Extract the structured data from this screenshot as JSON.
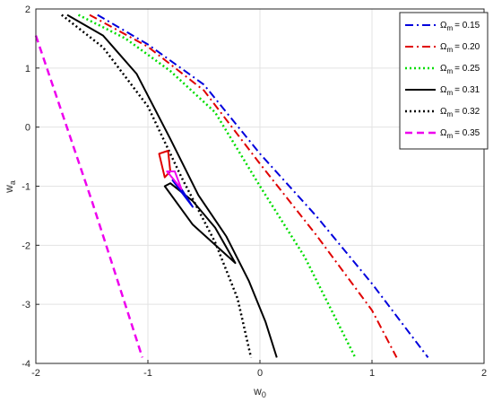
{
  "chart_data": {
    "type": "line",
    "xlabel": "w",
    "xlabel_sub": "0",
    "ylabel": "w",
    "ylabel_sub": "a",
    "xlim": [
      -2,
      2
    ],
    "ylim": [
      -4,
      2
    ],
    "xticks": [
      -2,
      -1,
      0,
      1,
      2
    ],
    "yticks": [
      -4,
      -3,
      -2,
      -1,
      0,
      1,
      2
    ],
    "grid": true,
    "legend_position": "top-right",
    "legend_symbol": "Ω",
    "legend_symbol_sub": "m",
    "series": [
      {
        "name": "= 0.15",
        "color": "#0000dd",
        "dash": "dashdot",
        "width": 2,
        "points": [
          [
            -1.45,
            1.9
          ],
          [
            -1.0,
            1.4
          ],
          [
            -0.5,
            0.72
          ],
          [
            0.0,
            -0.45
          ],
          [
            0.5,
            -1.5
          ],
          [
            1.0,
            -2.65
          ],
          [
            1.5,
            -3.9
          ]
        ]
      },
      {
        "name": "= 0.20",
        "color": "#e00000",
        "dash": "dashdot",
        "width": 2,
        "points": [
          [
            -1.52,
            1.9
          ],
          [
            -1.0,
            1.36
          ],
          [
            -0.5,
            0.62
          ],
          [
            0.0,
            -0.62
          ],
          [
            0.5,
            -1.82
          ],
          [
            1.0,
            -3.1
          ],
          [
            1.22,
            -3.9
          ]
        ]
      },
      {
        "name": "= 0.25",
        "color": "#00dd00",
        "dash": "dotted",
        "width": 2.5,
        "points": [
          [
            -1.62,
            1.9
          ],
          [
            -1.2,
            1.5
          ],
          [
            -0.8,
            0.95
          ],
          [
            -0.4,
            0.25
          ],
          [
            0.0,
            -1.0
          ],
          [
            0.4,
            -2.2
          ],
          [
            0.85,
            -3.9
          ]
        ]
      },
      {
        "name": "= 0.31",
        "color": "#000000",
        "dash": "solid",
        "width": 2,
        "points": [
          [
            -1.72,
            1.9
          ],
          [
            -1.4,
            1.55
          ],
          [
            -1.1,
            0.9
          ],
          [
            -0.8,
            -0.2
          ],
          [
            -0.55,
            -1.15
          ],
          [
            -0.3,
            -1.85
          ],
          [
            -0.1,
            -2.6
          ],
          [
            0.05,
            -3.3
          ],
          [
            0.15,
            -3.9
          ]
        ]
      },
      {
        "name": "= 0.32",
        "color": "#000000",
        "dash": "dotted",
        "width": 2.5,
        "points": [
          [
            -1.77,
            1.9
          ],
          [
            -1.4,
            1.35
          ],
          [
            -1.0,
            0.35
          ],
          [
            -0.7,
            -0.85
          ],
          [
            -0.4,
            -1.95
          ],
          [
            -0.2,
            -2.9
          ],
          [
            -0.08,
            -3.9
          ]
        ]
      },
      {
        "name": "= 0.35",
        "color": "#ee00ee",
        "dash": "dashed",
        "width": 2.5,
        "points": [
          [
            -2.0,
            1.55
          ],
          [
            -1.5,
            -1.25
          ],
          [
            -1.05,
            -3.9
          ]
        ]
      }
    ],
    "contours": [
      {
        "series_index": 3,
        "color": "#000000",
        "width": 2,
        "points": [
          [
            -0.8,
            -0.95
          ],
          [
            -0.6,
            -1.25
          ],
          [
            -0.4,
            -1.7
          ],
          [
            -0.22,
            -2.3
          ],
          [
            -0.6,
            -1.65
          ],
          [
            -0.85,
            -1.0
          ]
        ]
      },
      {
        "series_index": 1,
        "color": "#e00000",
        "width": 2,
        "points": [
          [
            -0.9,
            -0.45
          ],
          [
            -0.85,
            -0.85
          ],
          [
            -0.8,
            -0.75
          ],
          [
            -0.82,
            -0.4
          ]
        ]
      },
      {
        "series_index": 0,
        "color": "#0000dd",
        "width": 2,
        "points": [
          [
            -0.78,
            -0.9
          ],
          [
            -0.6,
            -1.35
          ],
          [
            -0.7,
            -1.05
          ]
        ]
      },
      {
        "series_index": 5,
        "color": "#ee00ee",
        "width": 2,
        "points": [
          [
            -0.83,
            -0.75
          ],
          [
            -0.7,
            -1.05
          ],
          [
            -0.76,
            -0.75
          ]
        ]
      }
    ]
  }
}
